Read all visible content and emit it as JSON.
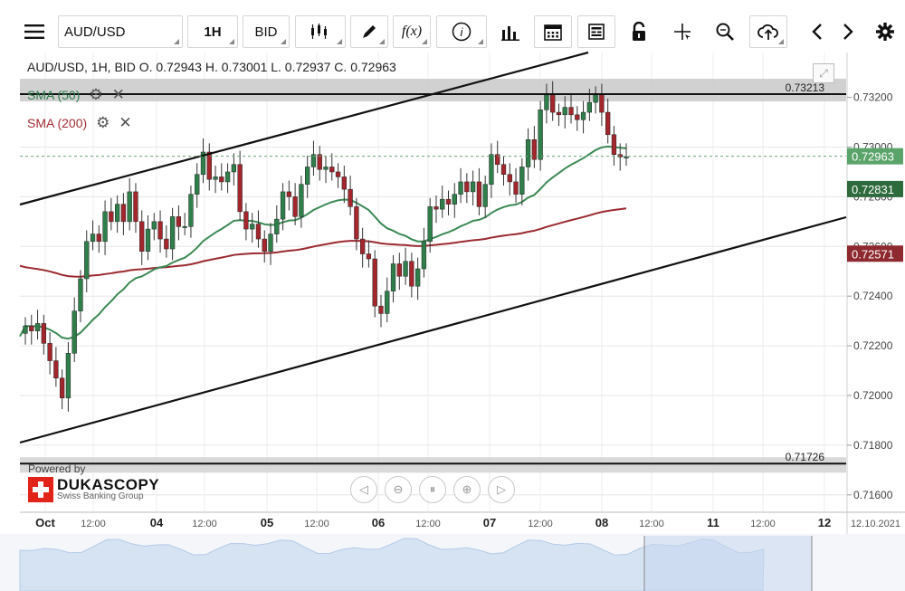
{
  "toolbar": {
    "symbol": "AUD/USD",
    "timeframe": "1H",
    "price_side": "BID",
    "icons": [
      "menu-icon",
      "candles-icon",
      "pen-icon",
      "function-icon",
      "info-icon",
      "bars-icon",
      "calendar-icon",
      "report-icon",
      "lock-icon",
      "crosshair-icon",
      "zoom-icon",
      "cloud-upload-icon",
      "prev-arrow-icon",
      "next-arrow-icon",
      "gear-icon"
    ],
    "function_label": "f(x)"
  },
  "legend": {
    "text": "AUD/USD, 1H, BID    O. 0.72943 H. 0.73001 L. 0.72937 C. 0.72963"
  },
  "indicators": [
    {
      "label": "SMA (50)",
      "color": "#2e7d4a"
    },
    {
      "label": "SMA (200)",
      "color": "#a12c33"
    }
  ],
  "branding": {
    "powered_by": "Powered by",
    "name": "DUKASCOPY",
    "sub": "Swiss Banking Group"
  },
  "chart_data": {
    "type": "candlestick",
    "title": "AUD/USD, 1H, BID",
    "ylim": [
      0.7153,
      0.7341
    ],
    "y_ticks": [
      "0.73200",
      "0.73000",
      "0.72800",
      "0.72600",
      "0.72400",
      "0.72200",
      "0.72000",
      "0.71800",
      "0.71600"
    ],
    "x_ticks": [
      "Oct",
      "12:00",
      "04",
      "12:00",
      "05",
      "12:00",
      "06",
      "12:00",
      "07",
      "12:00",
      "08",
      "12:00",
      "11",
      "12:00",
      "12"
    ],
    "date_label": "12.10.2021",
    "current_price": {
      "value": 0.72963,
      "label": "0.72963",
      "color": "#5aa46a"
    },
    "sma50_label": {
      "value": 0.72831,
      "label": "0.72831",
      "color": "#2e6b3c"
    },
    "sma200_label": {
      "value": 0.72571,
      "label": "0.72571",
      "color": "#8e2a2f"
    },
    "horizontal_lines": [
      {
        "value": 0.73213,
        "label": "0.73213"
      },
      {
        "value": 0.71726,
        "label": "0.71726"
      }
    ],
    "channel_upper": [
      [
        0.72795,
        0.73403
      ],
      [
        0.72795,
        0.73403
      ]
    ],
    "candles_hourly_close": [
      0.7228,
      0.7226,
      0.7229,
      0.7221,
      0.7214,
      0.7207,
      0.7199,
      0.7217,
      0.7234,
      0.7247,
      0.7262,
      0.7265,
      0.7262,
      0.7274,
      0.727,
      0.7277,
      0.727,
      0.7282,
      0.727,
      0.7258,
      0.7267,
      0.727,
      0.7263,
      0.7259,
      0.7272,
      0.7268,
      0.7268,
      0.7281,
      0.7289,
      0.7298,
      0.7287,
      0.7288,
      0.7286,
      0.729,
      0.7293,
      0.7274,
      0.7267,
      0.7269,
      0.7263,
      0.7258,
      0.7265,
      0.7271,
      0.7282,
      0.728,
      0.7272,
      0.7285,
      0.7292,
      0.7297,
      0.7291,
      0.7292,
      0.729,
      0.7288,
      0.7283,
      0.7276,
      0.7263,
      0.7257,
      0.7255,
      0.7236,
      0.7233,
      0.7242,
      0.7253,
      0.7248,
      0.7254,
      0.7244,
      0.7251,
      0.7262,
      0.7276,
      0.7275,
      0.7279,
      0.7277,
      0.7281,
      0.7286,
      0.7282,
      0.7286,
      0.7276,
      0.7285,
      0.7297,
      0.7293,
      0.7289,
      0.7286,
      0.7281,
      0.7292,
      0.7303,
      0.7295,
      0.7315,
      0.7321,
      0.7314,
      0.7313,
      0.7316,
      0.7313,
      0.7311,
      0.7314,
      0.7318,
      0.7321,
      0.7314,
      0.7305,
      0.7297,
      0.7296,
      0.7296
    ]
  }
}
